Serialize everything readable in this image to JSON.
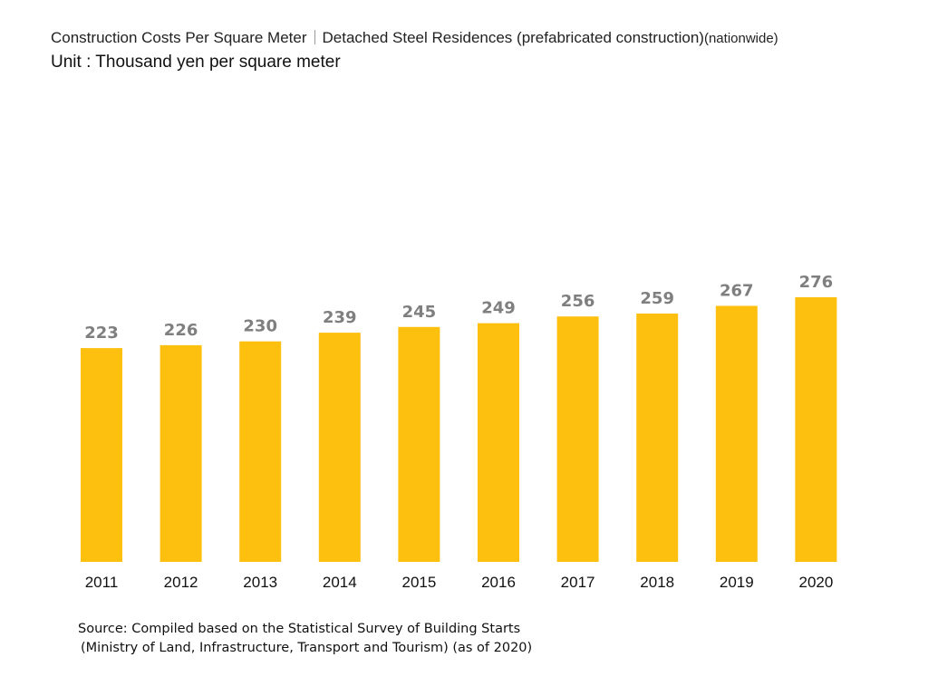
{
  "title": {
    "main": "Construction Costs Per Square Meter",
    "sub": "Detached Steel Residences (prefabricated construction)",
    "suffix": "(nationwide)"
  },
  "unit": "Unit : Thousand yen per square meter",
  "source": {
    "line1": "Source: Compiled based on the Statistical Survey of Building Starts",
    "line2": "(Ministry of Land, Infrastructure, Transport and Tourism) (as of 2020)"
  },
  "chart_data": {
    "type": "bar",
    "categories": [
      "2011",
      "2012",
      "2013",
      "2014",
      "2015",
      "2016",
      "2017",
      "2018",
      "2019",
      "2020"
    ],
    "values": [
      223,
      226,
      230,
      239,
      245,
      249,
      256,
      259,
      267,
      276
    ],
    "title": "Construction Costs Per Square Meter | Detached Steel Residences (prefabricated construction)(nationwide)",
    "xlabel": "",
    "ylabel": "",
    "ylim": [
      0,
      276
    ],
    "grid": false,
    "legend": "none",
    "bar_color": "#FDC00F",
    "label_color": "#7F7F7F"
  }
}
